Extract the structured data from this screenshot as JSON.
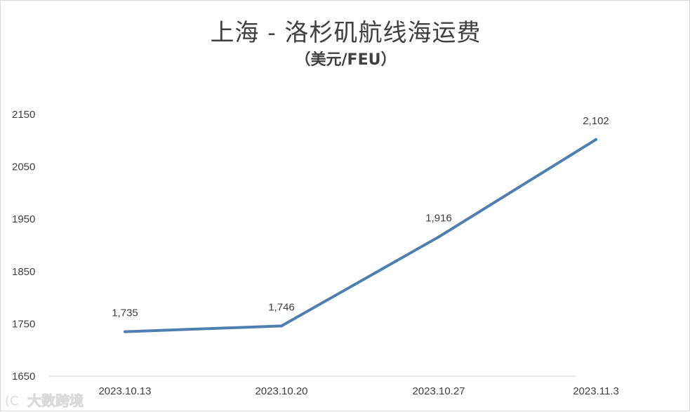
{
  "chart_data": {
    "type": "line",
    "title": "上海 - 洛杉矶航线海运费",
    "subtitle": "（美元/FEU）",
    "categories": [
      "2023.10.13",
      "2023.10.20",
      "2023.10.27",
      "2023.11.3"
    ],
    "series": [
      {
        "values": [
          1735,
          1746,
          1916,
          2102
        ],
        "data_labels": [
          "1,735",
          "1,746",
          "1,916",
          "2,102"
        ],
        "color": "#4f7fb0"
      }
    ],
    "yticks": [
      1650,
      1750,
      1850,
      1950,
      2050,
      2150
    ],
    "ylim": [
      1650,
      2150
    ],
    "grid": false,
    "legend": "none"
  },
  "watermark": "大数跨境"
}
